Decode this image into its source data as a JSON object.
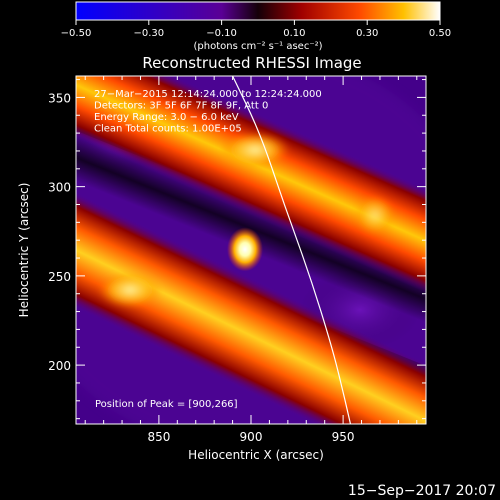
{
  "colorbar": {
    "ticks": [
      "−0.50",
      "−0.30",
      "−0.10",
      "0.10",
      "0.30",
      "0.50"
    ],
    "tick_values": [
      -0.5,
      -0.3,
      -0.1,
      0.1,
      0.3,
      0.5
    ],
    "range": [
      -0.5,
      0.5
    ],
    "units": "(photons cm⁻² s⁻¹ asec⁻²)"
  },
  "chart_data": {
    "type": "heatmap",
    "title": "Reconstructed RHESSI Image",
    "xlabel": "Heliocentric X (arcsec)",
    "ylabel": "Heliocentric Y (arcsec)",
    "xlim": [
      805,
      995
    ],
    "ylim": [
      167,
      362
    ],
    "x_ticks": [
      850,
      900,
      950
    ],
    "y_ticks": [
      200,
      250,
      300,
      350
    ],
    "annotations": [
      "27−Mar−2015 12:14:24.000 to 12:24:24.000",
      "Detectors: 3F 5F 6F 7F 8F 9F, Att 0",
      "Energy Range: 3.0 − 6.0 keV",
      "Clean    Total counts: 1.00E+05"
    ],
    "peak_label": "Position of Peak = [900,266]",
    "peak": [
      900,
      266
    ],
    "limb_points": [
      [
        890,
        362
      ],
      [
        905,
        330
      ],
      [
        918,
        290
      ],
      [
        932,
        250
      ],
      [
        944,
        210
      ],
      [
        950,
        185
      ],
      [
        954,
        167
      ]
    ]
  },
  "footer": {
    "date": "15−Sep−2017 20:07"
  }
}
